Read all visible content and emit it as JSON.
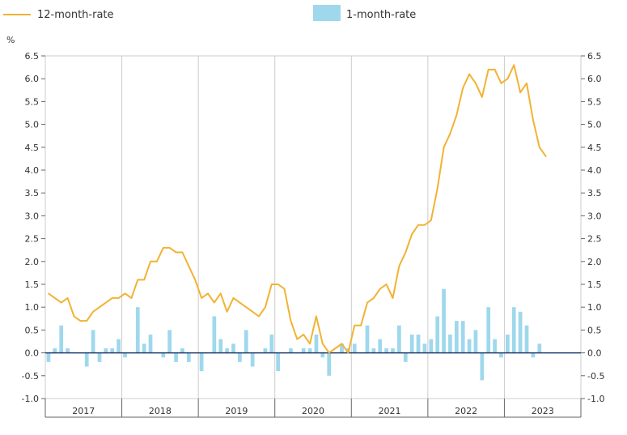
{
  "colors": {
    "line": "#f2b233",
    "bar": "#9fd8ec",
    "grid": "#cccccc",
    "axis": "#666666",
    "zero": "#1f3a6b"
  },
  "legend": {
    "line_label": "12-month-rate",
    "bar_label": "1-month-rate"
  },
  "chart_data": {
    "type": "line",
    "ylabel": "%",
    "ylim": [
      -1.0,
      6.5
    ],
    "yticks": [
      "6.5",
      "6.0",
      "5.5",
      "5.0",
      "4.5",
      "4.0",
      "3.5",
      "3.0",
      "2.5",
      "2.0",
      "1.5",
      "1.0",
      "0.5",
      "0.0",
      "-0.5",
      "-1.0"
    ],
    "years": [
      "2017",
      "2018",
      "2019",
      "2020",
      "2021",
      "2022",
      "2023"
    ],
    "grid": true,
    "legend_position": "top",
    "series": [
      {
        "name": "12-month-rate",
        "kind": "line",
        "values": [
          1.3,
          1.2,
          1.1,
          1.2,
          0.8,
          0.7,
          0.7,
          0.9,
          1.0,
          1.1,
          1.2,
          1.2,
          1.3,
          1.2,
          1.6,
          1.6,
          2.0,
          2.0,
          2.3,
          2.3,
          2.2,
          2.2,
          1.9,
          1.6,
          1.2,
          1.3,
          1.1,
          1.3,
          0.9,
          1.2,
          1.1,
          1.0,
          0.9,
          0.8,
          1.0,
          1.5,
          1.5,
          1.4,
          0.7,
          0.3,
          0.4,
          0.2,
          0.8,
          0.2,
          0.0,
          0.1,
          0.2,
          0.0,
          0.6,
          0.6,
          1.1,
          1.2,
          1.4,
          1.5,
          1.2,
          1.9,
          2.2,
          2.6,
          2.8,
          2.8,
          2.9,
          3.6,
          4.5,
          4.8,
          5.2,
          5.8,
          6.1,
          5.9,
          5.6,
          6.2,
          6.2,
          5.9,
          6.0,
          6.3,
          5.7,
          5.9,
          5.1,
          4.5,
          4.3
        ]
      },
      {
        "name": "1-month-rate",
        "kind": "bar",
        "values": [
          -0.2,
          0.1,
          0.6,
          0.1,
          0.0,
          0.0,
          -0.3,
          0.5,
          -0.2,
          0.1,
          0.1,
          0.3,
          -0.1,
          0.0,
          1.0,
          0.2,
          0.4,
          0.0,
          -0.1,
          0.5,
          -0.2,
          0.1,
          -0.2,
          0.0,
          -0.4,
          0.0,
          0.8,
          0.3,
          0.1,
          0.2,
          -0.2,
          0.5,
          -0.3,
          0.0,
          0.1,
          0.4,
          -0.4,
          0.0,
          0.1,
          0.0,
          0.1,
          0.1,
          0.4,
          -0.1,
          -0.5,
          0.0,
          0.2,
          0.1,
          0.2,
          0.0,
          0.6,
          0.1,
          0.3,
          0.1,
          0.1,
          0.6,
          -0.2,
          0.4,
          0.4,
          0.2,
          0.3,
          0.8,
          1.4,
          0.4,
          0.7,
          0.7,
          0.3,
          0.5,
          -0.6,
          1.0,
          0.3,
          -0.1,
          0.4,
          1.0,
          0.9,
          0.6,
          -0.1,
          0.2,
          0.0
        ]
      }
    ]
  }
}
